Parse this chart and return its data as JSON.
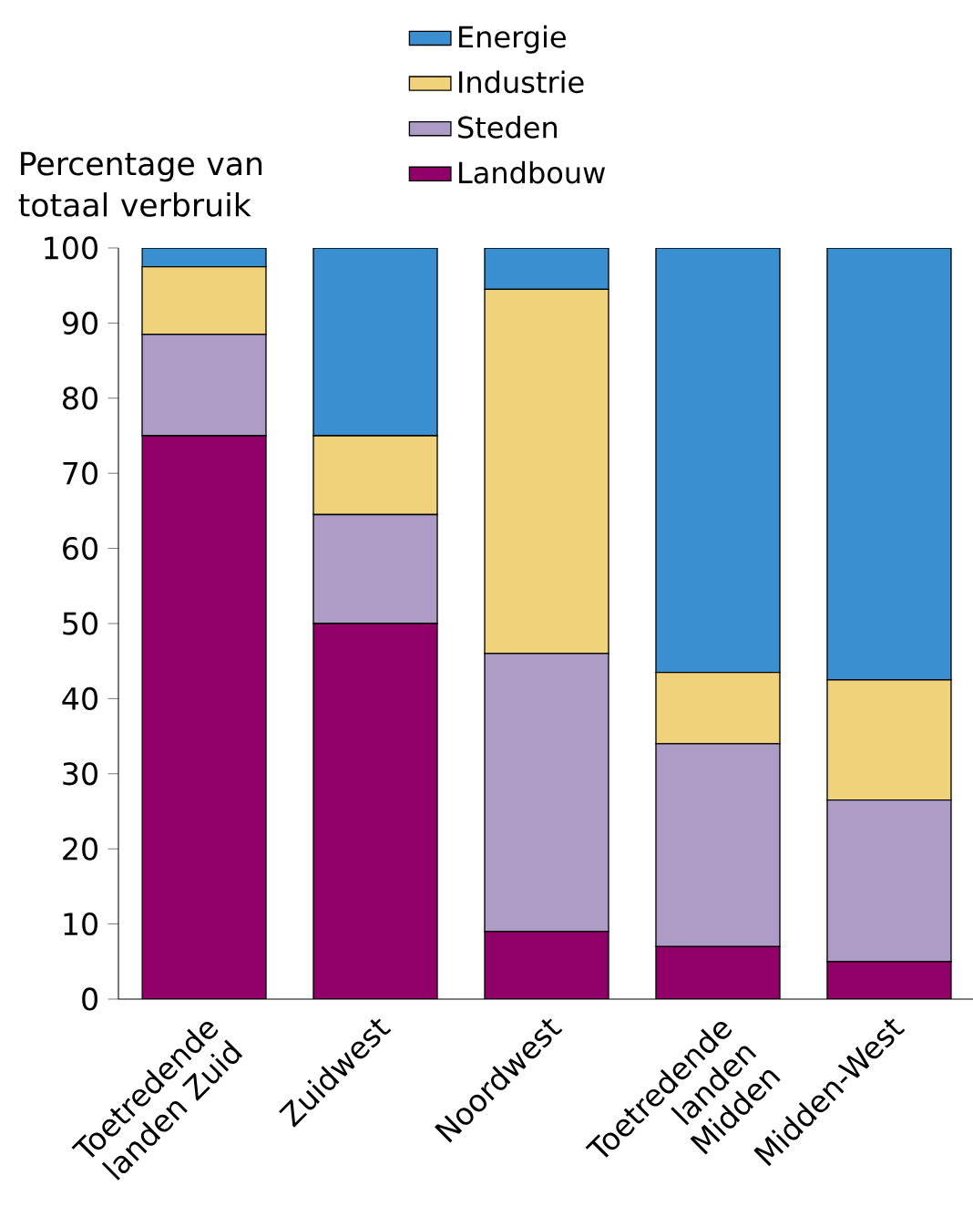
{
  "chart_data": {
    "type": "bar",
    "stacked": true,
    "ylabel": "Percentage van totaal verbruik",
    "categories": [
      "Toetredende landen Zuid",
      "Zuidwest",
      "Noordwest",
      "Toetredende landen Midden",
      "Midden-West"
    ],
    "series": [
      {
        "name": "Landbouw",
        "color": "#900068",
        "values": [
          75,
          50,
          9,
          7,
          5
        ]
      },
      {
        "name": "Steden",
        "color": "#ad9dc6",
        "values": [
          13.5,
          14.5,
          37,
          27,
          21.5
        ]
      },
      {
        "name": "Industrie",
        "color": "#f0d27a",
        "values": [
          9,
          10.5,
          48.5,
          9.5,
          16
        ]
      },
      {
        "name": "Energie",
        "color": "#3a8fd1",
        "values": [
          2.5,
          25,
          5.5,
          56.5,
          57.5
        ]
      }
    ],
    "ylim": [
      0,
      100
    ],
    "yticks": [
      0,
      10,
      20,
      30,
      40,
      50,
      60,
      70,
      80,
      90,
      100
    ],
    "legend": "top",
    "grid": false
  }
}
